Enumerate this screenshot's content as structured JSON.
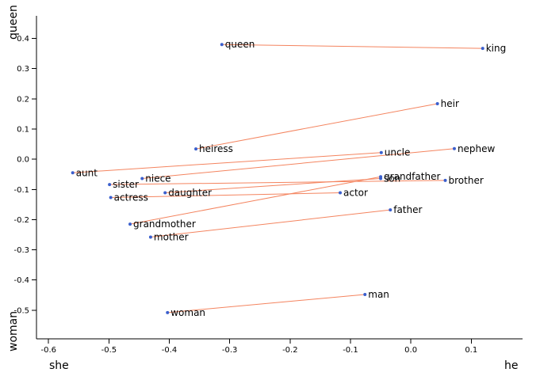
{
  "chart_data": {
    "type": "scatter",
    "title": "",
    "xlabel_left": "she",
    "xlabel_right": "he",
    "ylabel_top": "queen",
    "ylabel_bottom": "woman",
    "xlim": [
      -0.62,
      0.185
    ],
    "ylim": [
      -0.595,
      0.475
    ],
    "grid": false,
    "x_ticks": [
      -0.6,
      -0.5,
      -0.4,
      -0.3,
      -0.2,
      -0.1,
      0.0,
      0.1
    ],
    "x_tick_labels": [
      "-0.6",
      "-0.5",
      "-0.4",
      "-0.3",
      "-0.2",
      "-0.1",
      "0.0",
      "0.1"
    ],
    "y_ticks": [
      0.4,
      0.3,
      0.2,
      0.1,
      0.0,
      -0.1,
      -0.2,
      -0.3,
      -0.4,
      -0.5
    ],
    "y_tick_labels": [
      "0.4",
      "0.3",
      "0.2",
      "0.1",
      "0.0",
      "-0.1",
      "-0.2",
      "-0.3",
      "-0.4",
      "-0.5"
    ],
    "points": [
      {
        "label": "queen",
        "x": -0.313,
        "y": 0.38
      },
      {
        "label": "king",
        "x": 0.119,
        "y": 0.367
      },
      {
        "label": "heir",
        "x": 0.044,
        "y": 0.184
      },
      {
        "label": "heiress",
        "x": -0.356,
        "y": 0.034
      },
      {
        "label": "uncle",
        "x": -0.049,
        "y": 0.022
      },
      {
        "label": "nephew",
        "x": 0.072,
        "y": 0.035
      },
      {
        "label": "aunt",
        "x": -0.56,
        "y": -0.045
      },
      {
        "label": "niece",
        "x": -0.445,
        "y": -0.064
      },
      {
        "label": "sister",
        "x": -0.499,
        "y": -0.084
      },
      {
        "label": "daughter",
        "x": -0.407,
        "y": -0.111
      },
      {
        "label": "actress",
        "x": -0.497,
        "y": -0.127
      },
      {
        "label": "actor",
        "x": -0.117,
        "y": -0.111
      },
      {
        "label": "son",
        "x": -0.05,
        "y": -0.064
      },
      {
        "label": "grandfather",
        "x": -0.05,
        "y": -0.058
      },
      {
        "label": "brother",
        "x": 0.057,
        "y": -0.07
      },
      {
        "label": "father",
        "x": -0.034,
        "y": -0.168
      },
      {
        "label": "grandmother",
        "x": -0.465,
        "y": -0.215
      },
      {
        "label": "mother",
        "x": -0.431,
        "y": -0.258
      },
      {
        "label": "man",
        "x": -0.076,
        "y": -0.448
      },
      {
        "label": "woman",
        "x": -0.403,
        "y": -0.508
      }
    ],
    "pairs": [
      [
        "queen",
        "king"
      ],
      [
        "heiress",
        "heir"
      ],
      [
        "aunt",
        "uncle"
      ],
      [
        "niece",
        "nephew"
      ],
      [
        "sister",
        "brother"
      ],
      [
        "daughter",
        "son"
      ],
      [
        "actress",
        "actor"
      ],
      [
        "grandmother",
        "grandfather"
      ],
      [
        "mother",
        "father"
      ],
      [
        "woman",
        "man"
      ]
    ]
  }
}
